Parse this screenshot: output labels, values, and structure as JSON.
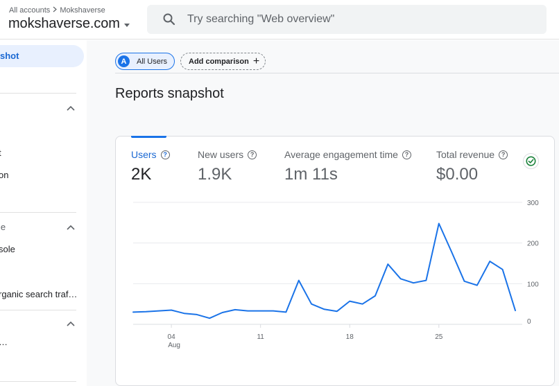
{
  "header": {
    "breadcrumb_all": "All accounts",
    "breadcrumb_account": "Mokshaverse",
    "property_name": "mokshaverse.com",
    "search_placeholder": "Try searching \"Web overview\""
  },
  "sidebar": {
    "active_item": "shot",
    "items": [
      "t",
      "on",
      "le",
      "sole",
      "rganic search traf…",
      "…"
    ]
  },
  "comparison": {
    "segment_avatar": "A",
    "segment_label": "All Users",
    "add_label": "Add comparison",
    "add_icon": "+"
  },
  "page_title": "Reports snapshot",
  "metrics": [
    {
      "label": "Users",
      "value": "2K",
      "active": true
    },
    {
      "label": "New users",
      "value": "1.9K",
      "active": false
    },
    {
      "label": "Average engagement time",
      "value": "1m 11s",
      "active": false
    },
    {
      "label": "Total revenue",
      "value": "$0.00",
      "active": false
    }
  ],
  "colors": {
    "accent": "#1a73e8",
    "active_nav_bg": "#e8f0fe",
    "check": "#188038"
  },
  "chart_data": {
    "type": "line",
    "series": [
      {
        "values": [
          30,
          31,
          33,
          35,
          27,
          24,
          15,
          29,
          36,
          33,
          33,
          33,
          30,
          108,
          50,
          37,
          32,
          57,
          50,
          70,
          148,
          112,
          102,
          108,
          248,
          178,
          106,
          96,
          155,
          135,
          34
        ]
      }
    ],
    "x_tick_labels": [
      {
        "index": 3,
        "label": "04",
        "sublabel": "Aug"
      },
      {
        "index": 10,
        "label": "11"
      },
      {
        "index": 17,
        "label": "18"
      },
      {
        "index": 24,
        "label": "25"
      }
    ],
    "y_ticks": [
      0,
      100,
      200,
      300
    ],
    "ylim": [
      0,
      300
    ],
    "grid": true
  }
}
